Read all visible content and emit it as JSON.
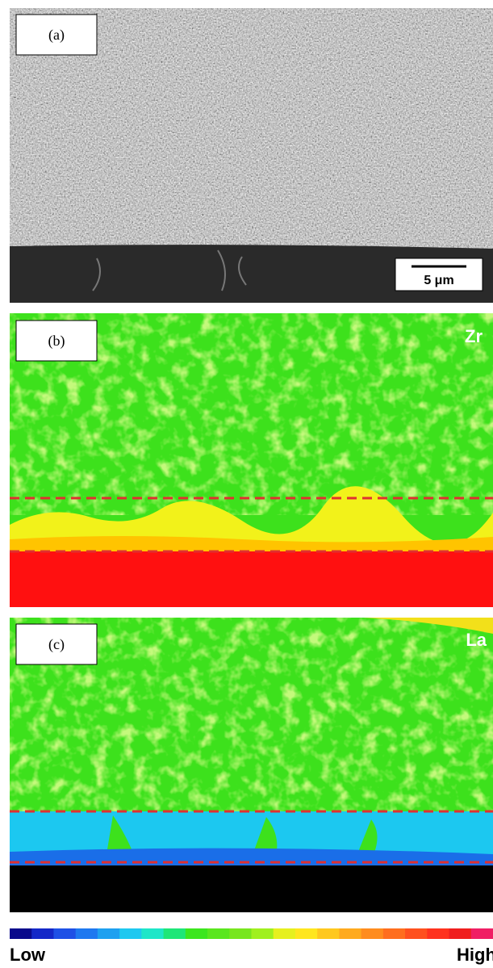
{
  "panels": [
    {
      "label": "(a)",
      "scale_bar": "5 μm"
    },
    {
      "label": "(b)",
      "element": "Zr"
    },
    {
      "label": "(c)",
      "element": "La"
    }
  ],
  "colorbar": {
    "low": "Low",
    "high": "High"
  }
}
